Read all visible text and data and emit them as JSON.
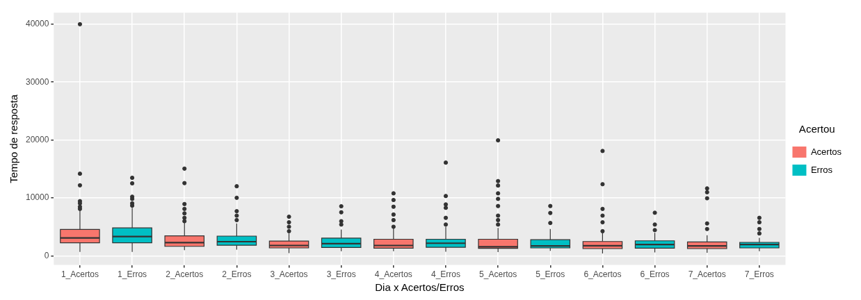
{
  "chart_data": {
    "type": "box",
    "xlabel": "Dia x Acertos/Erros",
    "ylabel": "Tempo de resposta",
    "legend_title": "Acertou",
    "legend": "right",
    "grid": true,
    "categories": [
      "1_Acertos",
      "1_Erros",
      "2_Acertos",
      "2_Erros",
      "3_Acertos",
      "3_Erros",
      "4_Acertos",
      "4_Erros",
      "5_Acertos",
      "5_Erros",
      "6_Acertos",
      "6_Erros",
      "7_Acertos",
      "7_Erros"
    ],
    "ylim": [
      -1600,
      42000
    ],
    "yticks": [
      0,
      10000,
      20000,
      30000,
      40000
    ],
    "series": [
      {
        "name": "Acertos",
        "color": "#f8766d",
        "boxes": [
          {
            "low": 650,
            "q1": 2230,
            "median": 3080,
            "q3": 4540,
            "high": 7900,
            "outliers": [
              40000,
              14170,
              12170,
              9430,
              9050,
              8470,
              8090
            ]
          },
          null,
          {
            "low": 960,
            "q1": 1620,
            "median": 2270,
            "q3": 3430,
            "high": 5780,
            "outliers": [
              15050,
              12550,
              8930,
              8090,
              7320,
              6550,
              5970
            ]
          },
          null,
          {
            "low": 460,
            "q1": 1350,
            "median": 1770,
            "q3": 2540,
            "high": 3850,
            "outliers": [
              6740,
              5780,
              5010,
              4240
            ]
          },
          null,
          {
            "low": 770,
            "q1": 1310,
            "median": 1770,
            "q3": 2850,
            "high": 4740,
            "outliers": [
              10780,
              9630,
              8470,
              7120,
              6160,
              5010
            ]
          },
          null,
          {
            "low": 620,
            "q1": 1270,
            "median": 1540,
            "q3": 2850,
            "high": 4810,
            "outliers": [
              19940,
              12900,
              12130,
              10780,
              9820,
              8590,
              6930,
              6160,
              5390
            ]
          },
          null,
          {
            "low": 390,
            "q1": 1230,
            "median": 1730,
            "q3": 2460,
            "high": 3970,
            "outliers": [
              18100,
              12360,
              8090,
              6930,
              5780,
              4240
            ]
          },
          null,
          {
            "low": 500,
            "q1": 1230,
            "median": 1690,
            "q3": 2390,
            "high": 3540,
            "outliers": [
              11630,
              10970,
              9930,
              5580,
              4620
            ]
          },
          null
        ]
      },
      {
        "name": "Erros",
        "color": "#00bfc4",
        "boxes": [
          null,
          {
            "low": 650,
            "q1": 2230,
            "median": 3310,
            "q3": 4810,
            "high": 8280,
            "outliers": [
              13470,
              12510,
              10200,
              9820,
              9050,
              8660
            ]
          },
          null,
          {
            "low": 1040,
            "q1": 1810,
            "median": 2430,
            "q3": 3390,
            "high": 5580,
            "outliers": [
              12010,
              10010,
              7700,
              6930,
              6160
            ]
          },
          null,
          {
            "low": 770,
            "q1": 1420,
            "median": 2080,
            "q3": 3040,
            "high": 4540,
            "outliers": [
              8550,
              7510,
              5970,
              5390
            ]
          },
          null,
          {
            "low": 690,
            "q1": 1460,
            "median": 2160,
            "q3": 2850,
            "high": 5010,
            "outliers": [
              16090,
              10320,
              8860,
              8280,
              6550,
              5390
            ]
          },
          null,
          {
            "low": 850,
            "q1": 1350,
            "median": 1690,
            "q3": 2770,
            "high": 4620,
            "outliers": [
              8590,
              7390,
              5660
            ]
          },
          null,
          {
            "low": 580,
            "q1": 1310,
            "median": 1930,
            "q3": 2580,
            "high": 3970,
            "outliers": [
              7430,
              5390,
              4430
            ]
          },
          null,
          {
            "low": 770,
            "q1": 1350,
            "median": 1930,
            "q3": 2310,
            "high": 3080,
            "outliers": [
              6550,
              5780,
              4620,
              3850
            ]
          }
        ]
      }
    ]
  }
}
